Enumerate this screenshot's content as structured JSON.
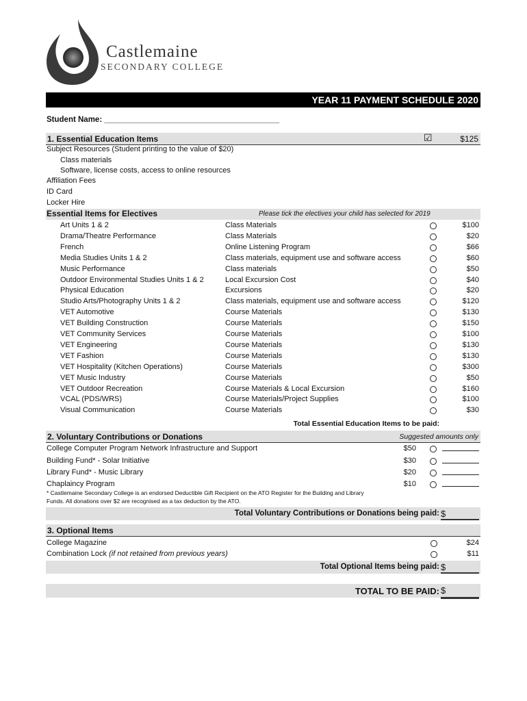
{
  "header": {
    "college_name": "Castlemaine",
    "college_sub": "SECONDARY COLLEGE",
    "title": "YEAR 11 PAYMENT SCHEDULE 2020",
    "student_name_label": "Student Name: ________________________________________"
  },
  "section1": {
    "title": "1. Essential Education Items",
    "checked": true,
    "price": "$125",
    "lines": [
      "Subject Resources (Student printing to the value of $20)",
      "Class materials",
      "Software, license costs, access to online resources",
      "Affiliation Fees",
      "ID Card",
      "Locker Hire"
    ]
  },
  "electives": {
    "title": "Essential Items for Electives",
    "note": "Please tick the electives your child has selected for 2019",
    "items": [
      {
        "name": "Art Units 1 & 2",
        "desc": "Class Materials",
        "price": "$100"
      },
      {
        "name": "Drama/Theatre Performance",
        "desc": "Class Materials",
        "price": "$20"
      },
      {
        "name": "French",
        "desc": "Online Listening Program",
        "price": "$66"
      },
      {
        "name": "Media Studies Units 1 & 2",
        "desc": "Class materials, equipment use and software access",
        "price": "$60"
      },
      {
        "name": "Music Performance",
        "desc": "Class materials",
        "price": "$50"
      },
      {
        "name": "Outdoor Environmental Studies Units 1 & 2",
        "desc": "Local Excursion Cost",
        "price": "$40"
      },
      {
        "name": "Physical Education",
        "desc": "Excursions",
        "price": "$20"
      },
      {
        "name": "Studio Arts/Photography Units 1 & 2",
        "desc": "Class materials, equipment use and software access",
        "price": "$120"
      },
      {
        "name": "VET Automotive",
        "desc": "Course Materials",
        "price": "$130"
      },
      {
        "name": "VET Building Construction",
        "desc": "Course Materials",
        "price": "$150"
      },
      {
        "name": "VET Community Services",
        "desc": "Course Materials",
        "price": "$100"
      },
      {
        "name": "VET Engineering",
        "desc": "Course Materials",
        "price": "$130"
      },
      {
        "name": "VET Fashion",
        "desc": "Course Materials",
        "price": "$130"
      },
      {
        "name": "VET Hospitality (Kitchen Operations)",
        "desc": "Course Materials",
        "price": "$300"
      },
      {
        "name": "VET Music Industry",
        "desc": "Course Materials",
        "price": "$50"
      },
      {
        "name": "VET Outdoor Recreation",
        "desc": "Course Materials & Local Excursion",
        "price": "$160"
      },
      {
        "name": "VCAL (PDS/WRS)",
        "desc": "Course Materials/Project Supplies",
        "price": "$100"
      },
      {
        "name": "Visual Communication",
        "desc": "Course Materials",
        "price": "$30"
      }
    ],
    "total_label": "Total Essential Education Items to be paid:"
  },
  "section2": {
    "title": "2. Voluntary Contributions or Donations",
    "note": "Suggested amounts only",
    "items": [
      {
        "name": "College Computer Program Network Infrastructure and Support",
        "amount": "$50"
      },
      {
        "name": "Building Fund* - Solar Initiative",
        "amount": "$30"
      },
      {
        "name": "Library Fund* - Music Library",
        "amount": "$20"
      },
      {
        "name": "Chaplaincy Program",
        "amount": "$10"
      }
    ],
    "footnote1": "* Castlemaine Secondary College is an endorsed Deductible Gift Recipient on the ATO Register for the Building and Library",
    "footnote2": "Funds. All donations over $2 are recognised as a tax deduction by the ATO.",
    "total_label": "Total Voluntary Contributions or Donations being paid:",
    "currency": "$"
  },
  "section3": {
    "title": "3.  Optional Items",
    "items": [
      {
        "name": "College Magazine",
        "note": "",
        "price": "$24"
      },
      {
        "name": "Combination Lock",
        "note": "(if not retained from previous years)",
        "price": "$11"
      }
    ],
    "total_label": "Total Optional Items being paid:",
    "currency": "$"
  },
  "grand_total": {
    "label": "TOTAL TO BE PAID:",
    "currency": "$"
  }
}
